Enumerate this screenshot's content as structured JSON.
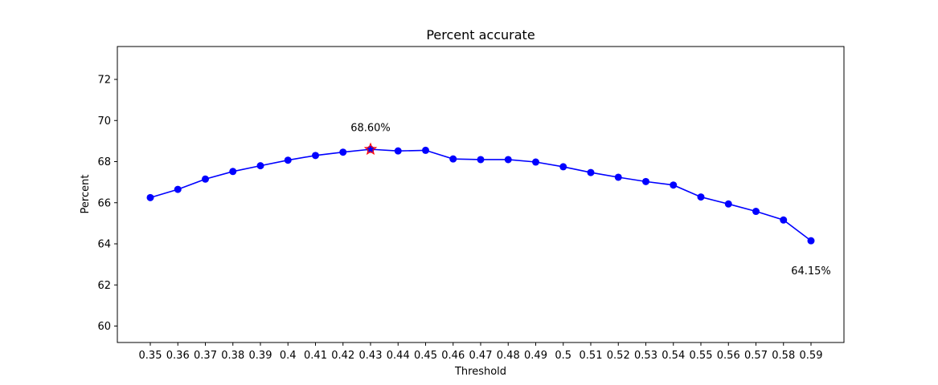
{
  "chart_data": {
    "type": "line",
    "title": "Percent accurate",
    "xlabel": "Threshold",
    "ylabel": "Percent",
    "x": [
      "0.35",
      "0.36",
      "0.37",
      "0.38",
      "0.39",
      "0.4",
      "0.41",
      "0.42",
      "0.43",
      "0.44",
      "0.45",
      "0.46",
      "0.47",
      "0.48",
      "0.49",
      "0.5",
      "0.51",
      "0.52",
      "0.53",
      "0.54",
      "0.55",
      "0.56",
      "0.57",
      "0.58",
      "0.59"
    ],
    "series": [
      {
        "color": "#0000ff",
        "values": [
          66.25,
          66.65,
          67.15,
          67.52,
          67.8,
          68.07,
          68.3,
          68.46,
          68.6,
          68.52,
          68.55,
          68.13,
          68.1,
          68.1,
          67.98,
          67.75,
          67.47,
          67.24,
          67.03,
          66.86,
          66.28,
          65.94,
          65.58,
          65.16,
          64.15
        ]
      }
    ],
    "ylim": [
      59.2,
      73.6
    ],
    "yticks": [
      "60",
      "62",
      "64",
      "66",
      "68",
      "70",
      "72"
    ],
    "max_marker": {
      "x": "0.43",
      "y": 68.6,
      "color": "#ff0000"
    },
    "annotations": [
      {
        "text": "68.60%",
        "x": "0.43",
        "y": 69.65
      },
      {
        "text": "64.15%",
        "x": "0.59",
        "y": 62.7
      }
    ],
    "grid": false
  }
}
